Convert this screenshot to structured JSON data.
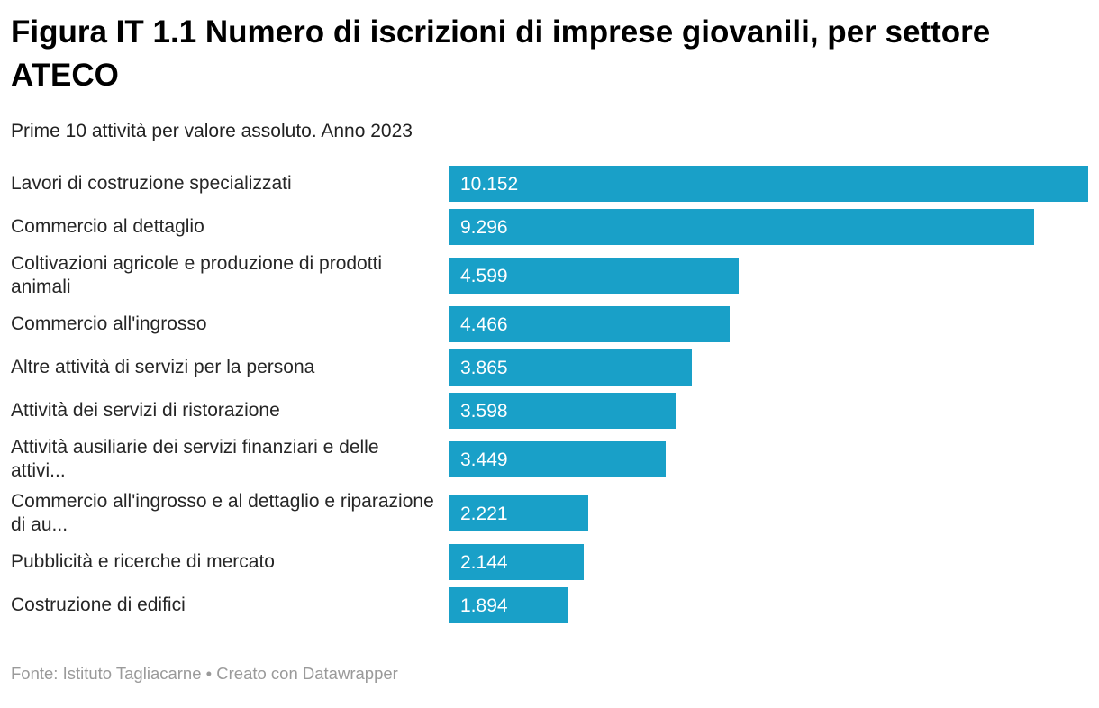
{
  "header": {
    "title": "Figura IT 1.1 Numero di iscrizioni di imprese giovanili, per settore ATECO",
    "subtitle": "Prime 10 attività per valore assoluto. Anno 2023"
  },
  "footer": {
    "text": "Fonte: Istituto Tagliacarne • Creato con Datawrapper",
    "source": "Fonte: Istituto Tagliacarne",
    "attribution": "Creato con Datawrapper"
  },
  "chart_data": {
    "type": "bar",
    "orientation": "horizontal",
    "title": "Figura IT 1.1 Numero di iscrizioni di imprese giovanili, per settore ATECO",
    "subtitle": "Prime 10 attività per valore assoluto. Anno 2023",
    "categories": [
      "Lavori di costruzione specializzati",
      "Commercio al dettaglio",
      "Coltivazioni agricole e produzione di prodotti animali",
      "Commercio all'ingrosso",
      "Altre attività di servizi per la persona",
      "Attività dei servizi di ristorazione",
      "Attività ausiliarie dei servizi finanziari e delle attivi...",
      "Commercio all'ingrosso e al dettaglio e riparazione di au...",
      "Pubblicità e ricerche di mercato",
      "Costruzione di edifici"
    ],
    "values": [
      10152,
      9296,
      4599,
      4466,
      3865,
      3598,
      3449,
      2221,
      2144,
      1894
    ],
    "value_labels": [
      "10.152",
      "9.296",
      "4.599",
      "4.466",
      "3.865",
      "3.598",
      "3.449",
      "2.221",
      "2.144",
      "1.894"
    ],
    "xlim": [
      0,
      10152
    ],
    "bar_color": "#19a0c8",
    "value_label_position": "inside-left",
    "value_label_color": "#ffffff",
    "grid": false,
    "legend": false,
    "source": "Fonte: Istituto Tagliacarne",
    "attribution": "Creato con Datawrapper"
  }
}
